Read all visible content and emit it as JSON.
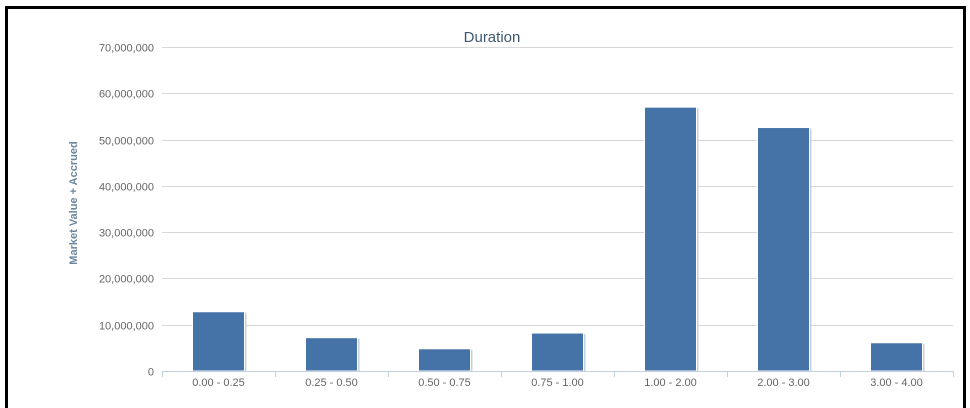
{
  "chart_data": {
    "type": "bar",
    "title": "Duration",
    "xlabel": "",
    "ylabel": "Market Value + Accrued",
    "categories": [
      "0.00 - 0.25",
      "0.25 - 0.50",
      "0.50 - 0.75",
      "0.75 - 1.00",
      "1.00 - 2.00",
      "2.00 - 3.00",
      "3.00 - 4.00"
    ],
    "values": [
      12800000,
      7200000,
      4800000,
      8200000,
      57000000,
      52600000,
      6100000
    ],
    "ylim": [
      0,
      70000000
    ],
    "yticks": [
      "0",
      "10,000,000",
      "20,000,000",
      "30,000,000",
      "40,000,000",
      "50,000,000",
      "60,000,000",
      "70,000,000"
    ],
    "grid": true,
    "bar_color": "#4572a7",
    "legend": "none"
  }
}
